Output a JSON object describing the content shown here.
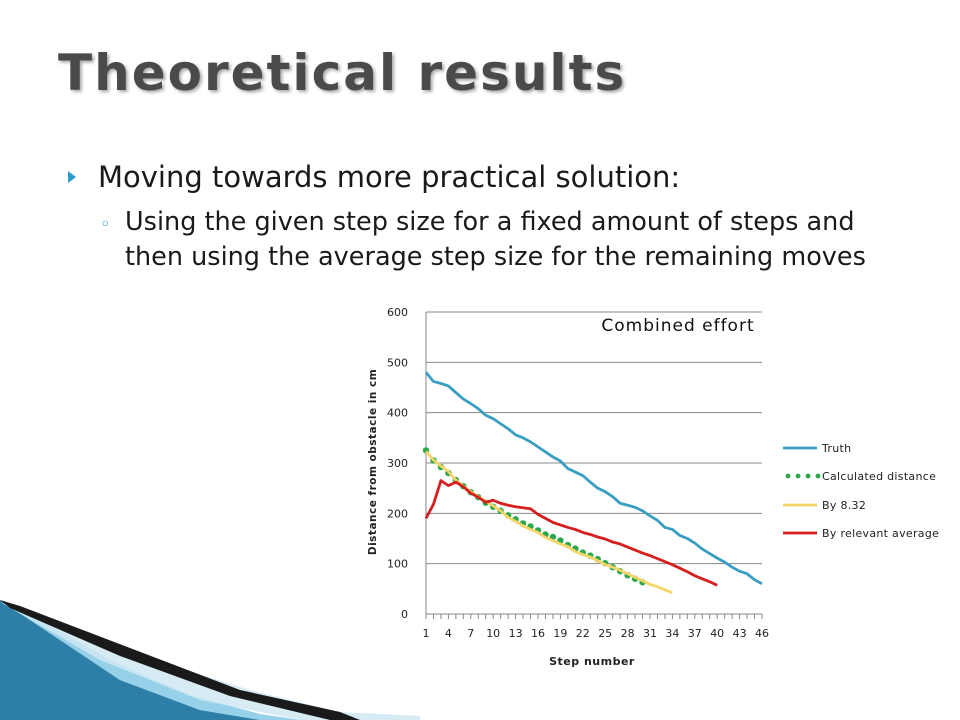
{
  "slide": {
    "title": "Theoretical results",
    "bullet1": "Moving towards more practical solution:",
    "bullet2": "Using the given step size for a fixed amount of steps and then using the average step size for the remaining moves"
  },
  "colors": {
    "accent": "#2b9ec8",
    "truth": "#3a9ec2",
    "calculated": "#2aa84a",
    "by832": "#f5d469",
    "relevant": "#d61f1f"
  },
  "chart_data": {
    "type": "line",
    "title": "Combined effort",
    "xlabel": "Step number",
    "ylabel": "Distance from obstacle in cm",
    "ylim": [
      0,
      600
    ],
    "yticks": [
      0,
      100,
      200,
      300,
      400,
      500,
      600
    ],
    "xticks": [
      "1",
      "4",
      "7",
      "10",
      "13",
      "16",
      "19",
      "22",
      "25",
      "28",
      "31",
      "34",
      "37",
      "40",
      "43",
      "46"
    ],
    "xrange": [
      1,
      46
    ],
    "grid": true,
    "legend_position": "right",
    "series": [
      {
        "name": "Truth",
        "style": "solid",
        "color": "#3a9ec2",
        "values": [
          480,
          462,
          458,
          453,
          440,
          427,
          418,
          408,
          395,
          388,
          378,
          368,
          356,
          350,
          342,
          332,
          322,
          312,
          304,
          289,
          282,
          275,
          262,
          250,
          243,
          233,
          220,
          216,
          212,
          205,
          195,
          186,
          172,
          168,
          156,
          150,
          141,
          129,
          120,
          111,
          103,
          93,
          85,
          80,
          68,
          60
        ]
      },
      {
        "name": "Calculated distance",
        "style": "dots",
        "color": "#2aa84a",
        "values": [
          325,
          305,
          292,
          280,
          266,
          254,
          242,
          232,
          221,
          213,
          205,
          196,
          188,
          180,
          174,
          166,
          158,
          153,
          146,
          137,
          130,
          122,
          116,
          109,
          101,
          93,
          85,
          77,
          70,
          63
        ]
      },
      {
        "name": "By 8.32",
        "style": "solid",
        "color": "#f5d469",
        "values": [
          323,
          306,
          294,
          283,
          266,
          254,
          243,
          233,
          224,
          215,
          205,
          192,
          184,
          175,
          168,
          162,
          152,
          146,
          139,
          134,
          124,
          118,
          113,
          106,
          98,
          93,
          87,
          80,
          73,
          66,
          59,
          54,
          48,
          42
        ]
      },
      {
        "name": "By relevant average",
        "style": "solid",
        "color": "#d61f1f",
        "values": [
          190,
          218,
          265,
          255,
          262,
          253,
          240,
          232,
          222,
          226,
          220,
          216,
          213,
          211,
          209,
          198,
          190,
          182,
          177,
          172,
          168,
          162,
          158,
          153,
          149,
          143,
          139,
          133,
          127,
          121,
          116,
          110,
          104,
          98,
          91,
          84,
          76,
          70,
          64,
          57
        ]
      }
    ]
  }
}
